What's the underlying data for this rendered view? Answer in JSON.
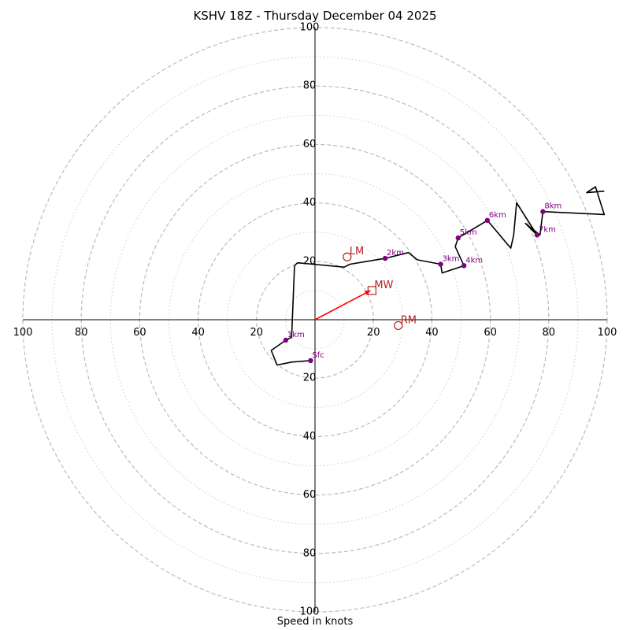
{
  "chart_data": {
    "type": "line",
    "title": "KSHV 18Z - Thursday December 04 2025",
    "xlabel": "Speed in knots",
    "ylabel": "",
    "range": 100,
    "ring_major": [
      20,
      40,
      60,
      80,
      100
    ],
    "ring_minor": [
      10,
      30,
      50,
      70,
      90
    ],
    "tick_labels": [
      "20",
      "40",
      "60",
      "80",
      "100"
    ],
    "grid": true,
    "colors": {
      "hodograph": "#000000",
      "height_marker": "#800080",
      "storm_motion": "#b22222",
      "mean_wind_vector": "#ff0000",
      "major_ring": "#bbbbbb",
      "minor_ring": "#cccccc"
    },
    "series": [
      {
        "points": [
          [
            -1.5,
            -14
          ],
          [
            -8,
            -14.5
          ],
          [
            -13,
            -15.5
          ],
          [
            -15,
            -10.5
          ],
          [
            -10,
            -7
          ],
          [
            -8,
            -6
          ],
          [
            -7,
            18.5
          ],
          [
            -6,
            19.5
          ],
          [
            10,
            18
          ],
          [
            12,
            19
          ],
          [
            24,
            21
          ],
          [
            32,
            23
          ],
          [
            35,
            20.5
          ],
          [
            43,
            19
          ],
          [
            43.5,
            16
          ],
          [
            51,
            18.5
          ],
          [
            48,
            25
          ],
          [
            49,
            28
          ],
          [
            59,
            34
          ],
          [
            67,
            24.5
          ],
          [
            68,
            29
          ],
          [
            69,
            40
          ],
          [
            76,
            29
          ],
          [
            72,
            33
          ],
          [
            77,
            29
          ],
          [
            78,
            37
          ],
          [
            99,
            36
          ],
          [
            96,
            45.5
          ],
          [
            93,
            43.5
          ],
          [
            99,
            44
          ]
        ]
      }
    ],
    "height_markers": [
      {
        "label": "Sfc",
        "u": -1.5,
        "v": -14
      },
      {
        "label": "1km",
        "u": -10,
        "v": -7
      },
      {
        "label": "2km",
        "u": 24,
        "v": 21
      },
      {
        "label": "3km",
        "u": 43,
        "v": 19
      },
      {
        "label": "4km",
        "u": 51,
        "v": 18.5
      },
      {
        "label": "5km",
        "u": 49,
        "v": 28
      },
      {
        "label": "6km",
        "u": 59,
        "v": 34
      },
      {
        "label": "7km",
        "u": 76,
        "v": 29
      },
      {
        "label": "8km",
        "u": 78,
        "v": 37
      }
    ],
    "storm_motion": [
      {
        "label": "LM",
        "u": 11,
        "v": 21.5,
        "marker": "circle"
      },
      {
        "label": "RM",
        "u": 28.5,
        "v": -2,
        "marker": "circle"
      },
      {
        "label": "MW",
        "u": 19.5,
        "v": 10,
        "marker": "square"
      }
    ],
    "mean_wind_vector": {
      "u": 19,
      "v": 10
    }
  }
}
